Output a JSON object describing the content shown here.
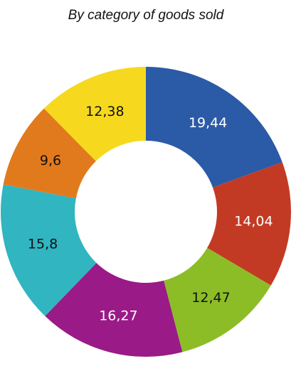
{
  "chart_data": {
    "type": "donut",
    "title": "By category of goods sold",
    "values": [
      19.44,
      14.04,
      12.47,
      16.27,
      15.8,
      9.6,
      12.38
    ],
    "value_labels": [
      "19,44",
      "14,04",
      "12,47",
      "16,27",
      "15,8",
      "9,6",
      "12,38"
    ],
    "colors": [
      "#2b5aa7",
      "#c33a24",
      "#8cbd27",
      "#9a1a87",
      "#31b5c0",
      "#e17a1d",
      "#f6d91e"
    ],
    "value_label_colors": [
      "#ffffff",
      "#ffffff",
      "#111111",
      "#ffffff",
      "#111111",
      "#111111",
      "#111111"
    ]
  }
}
